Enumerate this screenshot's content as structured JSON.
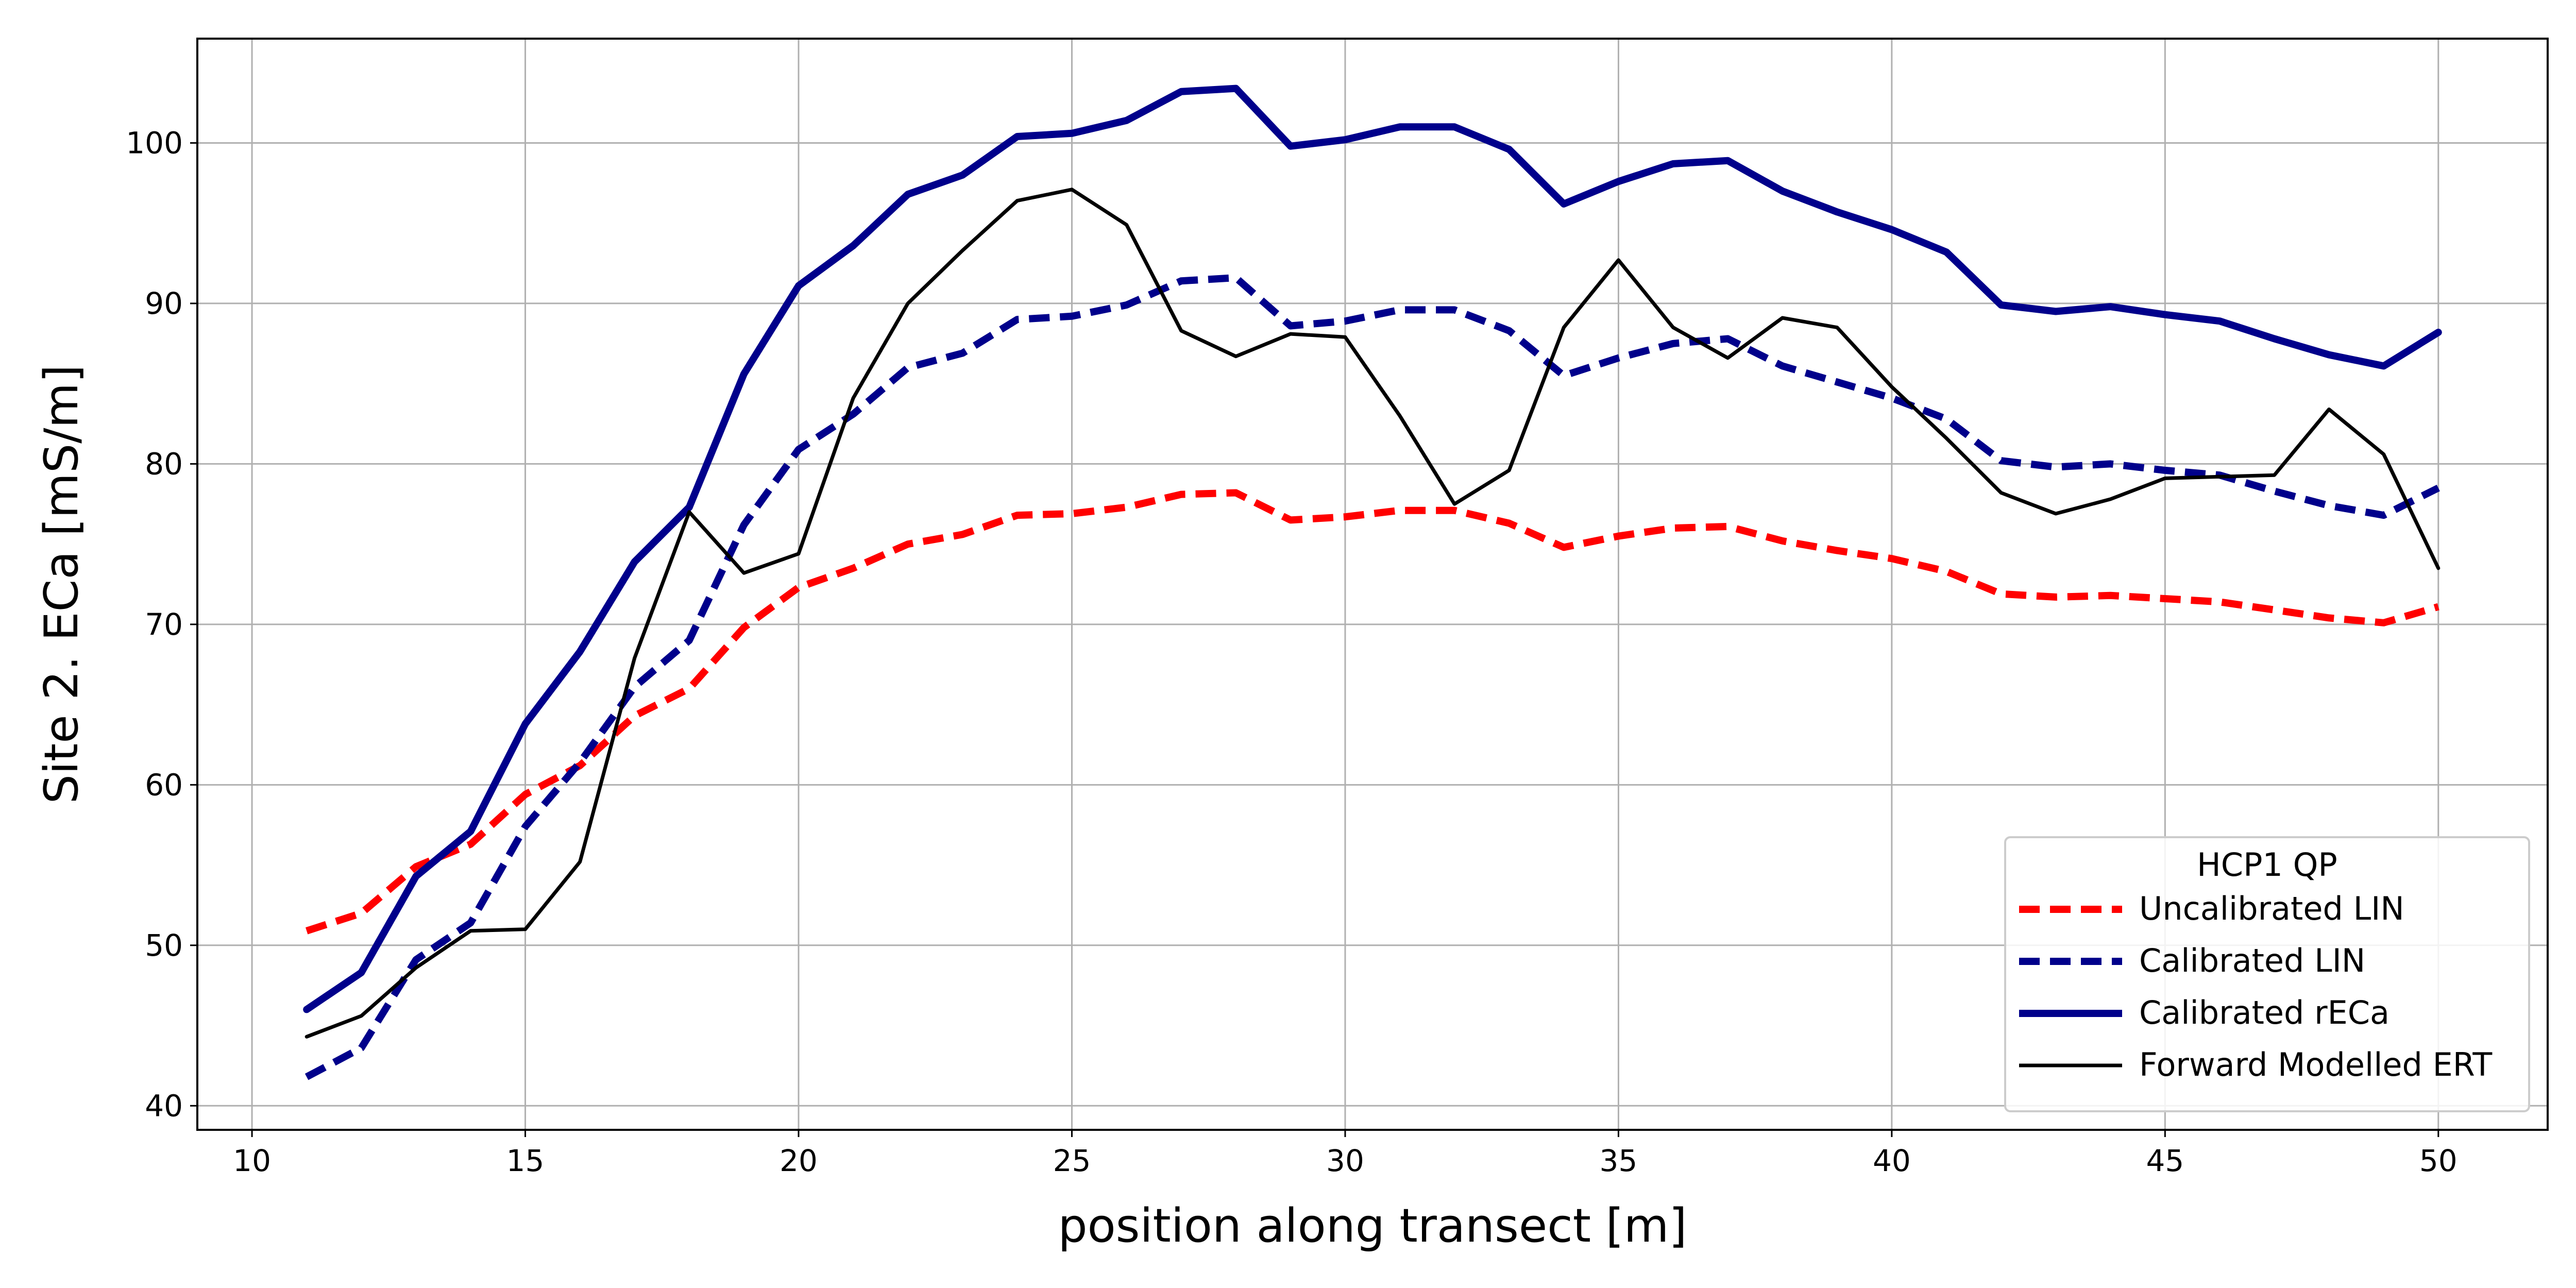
{
  "chart_data": {
    "type": "line",
    "title": "",
    "xlabel": "position along transect [m]",
    "ylabel": "Site 2. ECa [mS/m]",
    "xlim": [
      9,
      52
    ],
    "ylim": [
      38.5,
      106.5
    ],
    "xticks": [
      10,
      15,
      20,
      25,
      30,
      35,
      40,
      45,
      50
    ],
    "yticks": [
      40,
      50,
      60,
      70,
      80,
      90,
      100
    ],
    "grid": true,
    "legend": {
      "title": "HCP1 QP",
      "placement": "lower-right"
    },
    "x": [
      11,
      12,
      13,
      14,
      15,
      16,
      17,
      18,
      19,
      20,
      21,
      22,
      23,
      24,
      25,
      26,
      27,
      28,
      29,
      30,
      31,
      32,
      33,
      34,
      35,
      36,
      37,
      38,
      39,
      40,
      41,
      42,
      43,
      44,
      45,
      46,
      47,
      48,
      49,
      50
    ],
    "series": [
      {
        "name": "Uncalibrated LIN",
        "color": "#ff0000",
        "style": "dashed",
        "width": "thick",
        "values": [
          50.9,
          52.0,
          54.9,
          56.3,
          59.4,
          61.2,
          64.3,
          66.0,
          69.8,
          72.3,
          73.5,
          75.0,
          75.6,
          76.8,
          76.9,
          77.3,
          78.1,
          78.2,
          76.5,
          76.7,
          77.1,
          77.1,
          76.3,
          74.8,
          75.5,
          76.0,
          76.1,
          75.2,
          74.6,
          74.1,
          73.3,
          71.9,
          71.7,
          71.8,
          71.6,
          71.4,
          70.9,
          70.4,
          70.1,
          71.1
        ]
      },
      {
        "name": "Calibrated LIN",
        "color": "#00008b",
        "style": "dashed",
        "width": "thick",
        "values": [
          41.8,
          43.6,
          49.1,
          51.4,
          57.4,
          61.4,
          66.1,
          69.0,
          76.2,
          80.9,
          83.1,
          86.0,
          86.9,
          89.0,
          89.2,
          89.9,
          91.4,
          91.6,
          88.6,
          88.9,
          89.6,
          89.6,
          88.3,
          85.5,
          86.6,
          87.5,
          87.8,
          86.1,
          85.1,
          84.1,
          82.8,
          80.2,
          79.8,
          80.0,
          79.6,
          79.3,
          78.3,
          77.4,
          76.8,
          78.5
        ]
      },
      {
        "name": "Calibrated rECa",
        "color": "#00008b",
        "style": "solid",
        "width": "thick",
        "values": [
          46.0,
          48.3,
          54.3,
          57.1,
          63.8,
          68.3,
          73.9,
          77.3,
          85.6,
          91.1,
          93.6,
          96.8,
          98.0,
          100.4,
          100.6,
          101.4,
          103.2,
          103.4,
          99.8,
          100.2,
          101.0,
          101.0,
          99.6,
          96.2,
          97.6,
          98.7,
          98.9,
          97.0,
          95.7,
          94.6,
          93.2,
          89.9,
          89.5,
          89.8,
          89.3,
          88.9,
          87.8,
          86.8,
          86.1,
          88.2
        ]
      },
      {
        "name": "Forward Modelled ERT",
        "color": "#000000",
        "style": "solid",
        "width": "thin",
        "values": [
          44.3,
          45.6,
          48.6,
          50.9,
          51.0,
          55.2,
          67.9,
          77.0,
          73.2,
          74.4,
          84.1,
          90.0,
          93.3,
          96.4,
          97.1,
          94.9,
          88.3,
          86.7,
          88.1,
          87.9,
          83.0,
          77.5,
          79.6,
          88.5,
          92.7,
          88.5,
          86.6,
          89.1,
          88.5,
          84.8,
          81.6,
          78.2,
          76.9,
          77.8,
          79.1,
          79.2,
          79.3,
          83.4,
          80.6,
          73.5
        ]
      }
    ]
  }
}
